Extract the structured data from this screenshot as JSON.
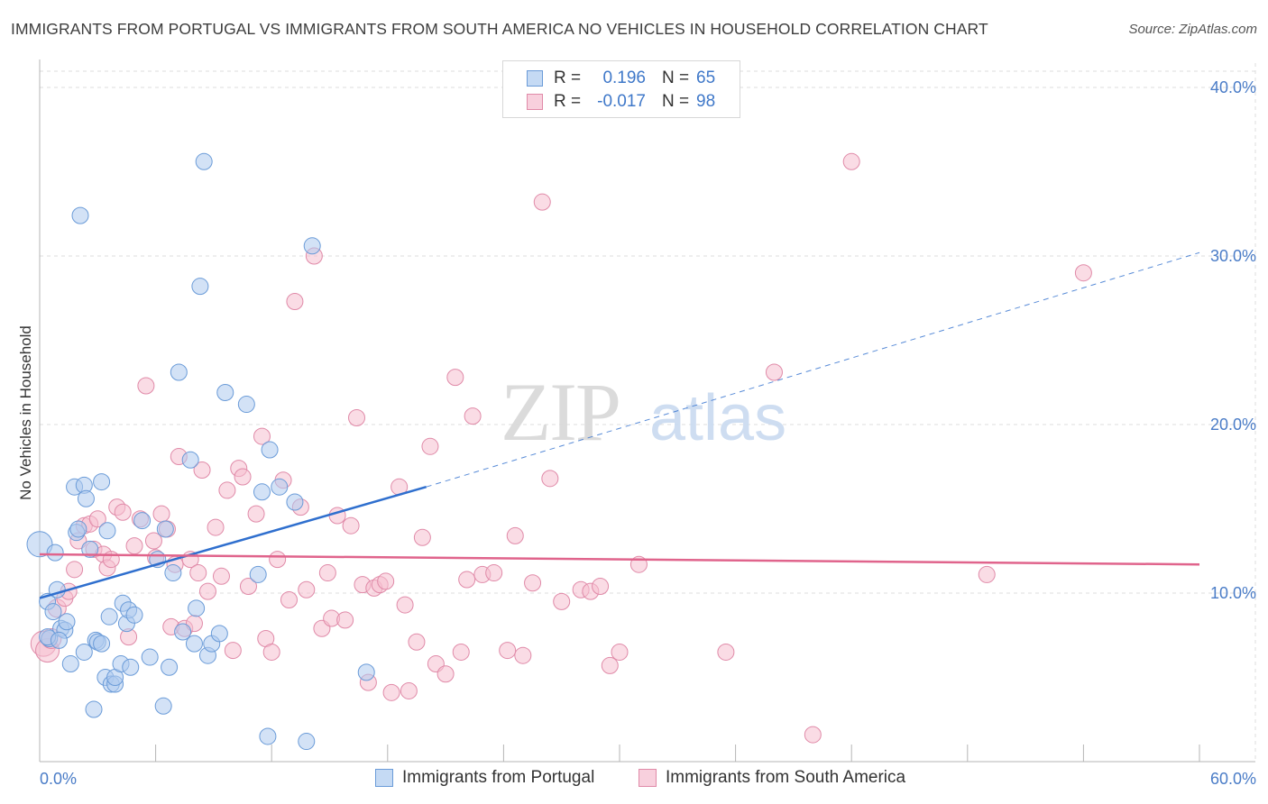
{
  "title": "IMMIGRANTS FROM PORTUGAL VS IMMIGRANTS FROM SOUTH AMERICA NO VEHICLES IN HOUSEHOLD CORRELATION CHART",
  "source": "Source: ZipAtlas.com",
  "watermark": {
    "zip": "ZIP",
    "atlas": "atlas"
  },
  "colors": {
    "blue_fill": "#aecbee",
    "blue_stroke": "#6a9bd8",
    "blue_line": "#2f6fce",
    "pink_fill": "#f5bfd0",
    "pink_stroke": "#e08aa8",
    "pink_line": "#e0648c",
    "tick_text": "#4a7cc7",
    "grid": "#dcdcdc"
  },
  "legend": {
    "rows": [
      {
        "r_label": "R =",
        "r_value": "0.196",
        "n_label": "N =",
        "n_value": "65"
      },
      {
        "r_label": "R =",
        "r_value": "-0.017",
        "n_label": "N =",
        "n_value": "98"
      }
    ]
  },
  "bottom_legend": [
    "Immigrants from Portugal",
    "Immigrants from South America"
  ],
  "chart_data": {
    "type": "scatter",
    "title": "IMMIGRANTS FROM PORTUGAL VS IMMIGRANTS FROM SOUTH AMERICA NO VEHICLES IN HOUSEHOLD CORRELATION CHART",
    "xlabel": "",
    "ylabel": "No Vehicles in Household",
    "xlim": [
      0,
      60
    ],
    "ylim": [
      0,
      40
    ],
    "x_tick_labels": [
      "0.0%",
      "60.0%"
    ],
    "y_ticks": [
      10,
      20,
      30,
      40
    ],
    "y_tick_labels": [
      "10.0%",
      "20.0%",
      "30.0%",
      "40.0%"
    ],
    "grid": true,
    "series": [
      {
        "name": "Immigrants from Portugal",
        "r": 0.196,
        "n": 65,
        "trend": {
          "x0": 0,
          "y0": 9.7,
          "x1": 20,
          "y1": 16.3,
          "dash_to_x": 60,
          "dash_to_y": 30.2
        },
        "points": [
          [
            0.0,
            12.9,
            14
          ],
          [
            0.5,
            7.3,
            9
          ],
          [
            0.4,
            9.5,
            9
          ],
          [
            0.7,
            8.9,
            9
          ],
          [
            0.8,
            12.4,
            9
          ],
          [
            0.9,
            10.2,
            9
          ],
          [
            1.1,
            7.9,
            9
          ],
          [
            1.3,
            7.8,
            9
          ],
          [
            1.4,
            8.3,
            9
          ],
          [
            1.6,
            5.8,
            9
          ],
          [
            1.8,
            16.3,
            9
          ],
          [
            1.9,
            13.6,
            9
          ],
          [
            2.0,
            13.8,
            9
          ],
          [
            2.1,
            32.4,
            9
          ],
          [
            2.3,
            16.4,
            9
          ],
          [
            2.4,
            15.6,
            9
          ],
          [
            2.3,
            6.5,
            9
          ],
          [
            2.6,
            12.6,
            9
          ],
          [
            2.8,
            3.1,
            9
          ],
          [
            2.9,
            7.2,
            9
          ],
          [
            3.0,
            7.1,
            9
          ],
          [
            3.2,
            16.6,
            9
          ],
          [
            3.4,
            5.0,
            9
          ],
          [
            3.5,
            13.7,
            9
          ],
          [
            3.6,
            8.6,
            9
          ],
          [
            3.7,
            4.6,
            9
          ],
          [
            3.9,
            4.6,
            9
          ],
          [
            3.9,
            5.0,
            9
          ],
          [
            4.2,
            5.8,
            9
          ],
          [
            4.3,
            9.4,
            9
          ],
          [
            4.5,
            8.2,
            9
          ],
          [
            4.6,
            9.0,
            9
          ],
          [
            4.7,
            5.6,
            9
          ],
          [
            4.9,
            8.7,
            9
          ],
          [
            5.3,
            14.3,
            9
          ],
          [
            5.7,
            6.2,
            9
          ],
          [
            6.1,
            12.0,
            9
          ],
          [
            6.4,
            3.3,
            9
          ],
          [
            6.5,
            13.8,
            9
          ],
          [
            6.7,
            5.6,
            9
          ],
          [
            6.9,
            11.2,
            9
          ],
          [
            7.2,
            23.1,
            9
          ],
          [
            7.4,
            7.7,
            9
          ],
          [
            7.8,
            17.9,
            9
          ],
          [
            8.0,
            7.0,
            9
          ],
          [
            8.1,
            9.1,
            9
          ],
          [
            8.3,
            28.2,
            9
          ],
          [
            8.5,
            35.6,
            9
          ],
          [
            8.7,
            6.3,
            9
          ],
          [
            8.9,
            7.0,
            9
          ],
          [
            9.3,
            7.6,
            9
          ],
          [
            9.6,
            21.9,
            9
          ],
          [
            10.7,
            21.2,
            9
          ],
          [
            11.3,
            11.1,
            9
          ],
          [
            11.5,
            16.0,
            9
          ],
          [
            11.8,
            1.5,
            9
          ],
          [
            11.9,
            18.5,
            9
          ],
          [
            12.4,
            16.3,
            9
          ],
          [
            13.2,
            15.4,
            9
          ],
          [
            13.8,
            1.2,
            9
          ],
          [
            14.1,
            30.6,
            9
          ],
          [
            16.9,
            5.3,
            9
          ],
          [
            0.4,
            7.4,
            9
          ],
          [
            1.0,
            7.2,
            9
          ],
          [
            3.2,
            7.0,
            9
          ]
        ]
      },
      {
        "name": "Immigrants from South America",
        "r": -0.017,
        "n": 98,
        "trend": {
          "x0": 0,
          "y0": 12.3,
          "x1": 60,
          "y1": 11.7
        },
        "points": [
          [
            0.2,
            7.0,
            14
          ],
          [
            0.4,
            6.6,
            13
          ],
          [
            0.6,
            7.3,
            11
          ],
          [
            0.9,
            9.1,
            10
          ],
          [
            1.3,
            9.7,
            9
          ],
          [
            1.5,
            10.1,
            9
          ],
          [
            1.8,
            11.4,
            9
          ],
          [
            2.0,
            13.1,
            9
          ],
          [
            2.3,
            14.0,
            9
          ],
          [
            2.6,
            14.1,
            9
          ],
          [
            2.8,
            12.6,
            9
          ],
          [
            3.0,
            14.4,
            9
          ],
          [
            3.3,
            12.3,
            9
          ],
          [
            3.5,
            11.5,
            9
          ],
          [
            3.7,
            12.0,
            9
          ],
          [
            4.0,
            15.1,
            9
          ],
          [
            4.3,
            14.8,
            9
          ],
          [
            4.6,
            7.4,
            9
          ],
          [
            4.9,
            12.8,
            9
          ],
          [
            5.2,
            14.4,
            9
          ],
          [
            5.5,
            22.3,
            9
          ],
          [
            5.9,
            13.1,
            9
          ],
          [
            6.0,
            12.1,
            9
          ],
          [
            6.3,
            14.7,
            9
          ],
          [
            6.6,
            13.8,
            9
          ],
          [
            6.8,
            8.0,
            9
          ],
          [
            7.0,
            11.7,
            9
          ],
          [
            7.2,
            18.1,
            9
          ],
          [
            7.5,
            7.9,
            9
          ],
          [
            7.8,
            12.0,
            9
          ],
          [
            8.0,
            8.2,
            9
          ],
          [
            8.2,
            11.2,
            9
          ],
          [
            8.4,
            17.3,
            9
          ],
          [
            8.7,
            10.1,
            9
          ],
          [
            9.1,
            13.9,
            9
          ],
          [
            9.4,
            11.0,
            9
          ],
          [
            9.7,
            16.1,
            9
          ],
          [
            10.0,
            6.6,
            9
          ],
          [
            10.3,
            17.4,
            9
          ],
          [
            10.5,
            16.9,
            9
          ],
          [
            10.8,
            10.4,
            9
          ],
          [
            11.2,
            14.7,
            9
          ],
          [
            11.5,
            19.3,
            9
          ],
          [
            11.7,
            7.3,
            9
          ],
          [
            12.0,
            6.5,
            9
          ],
          [
            12.3,
            12.0,
            9
          ],
          [
            12.6,
            16.7,
            9
          ],
          [
            12.9,
            9.6,
            9
          ],
          [
            13.2,
            27.3,
            9
          ],
          [
            13.5,
            15.1,
            9
          ],
          [
            13.8,
            10.2,
            9
          ],
          [
            14.2,
            30.0,
            9
          ],
          [
            14.6,
            7.9,
            9
          ],
          [
            14.9,
            11.2,
            9
          ],
          [
            15.1,
            8.5,
            9
          ],
          [
            15.4,
            14.6,
            9
          ],
          [
            15.8,
            8.4,
            9
          ],
          [
            16.1,
            14.0,
            9
          ],
          [
            16.4,
            20.4,
            9
          ],
          [
            16.7,
            10.5,
            9
          ],
          [
            17.0,
            4.7,
            9
          ],
          [
            17.3,
            10.3,
            9
          ],
          [
            17.6,
            10.5,
            9
          ],
          [
            17.9,
            10.7,
            9
          ],
          [
            18.2,
            4.1,
            9
          ],
          [
            18.6,
            16.3,
            9
          ],
          [
            18.9,
            9.3,
            9
          ],
          [
            19.1,
            4.2,
            9
          ],
          [
            19.5,
            7.1,
            9
          ],
          [
            19.8,
            13.3,
            9
          ],
          [
            20.2,
            18.7,
            9
          ],
          [
            20.5,
            5.8,
            9
          ],
          [
            21.0,
            5.2,
            9
          ],
          [
            21.5,
            22.8,
            9
          ],
          [
            21.8,
            6.5,
            9
          ],
          [
            22.1,
            10.8,
            9
          ],
          [
            22.4,
            20.5,
            9
          ],
          [
            22.9,
            11.1,
            9
          ],
          [
            23.5,
            11.2,
            9
          ],
          [
            24.2,
            6.6,
            9
          ],
          [
            24.6,
            13.4,
            9
          ],
          [
            25.0,
            6.3,
            9
          ],
          [
            25.5,
            10.6,
            9
          ],
          [
            26.0,
            33.2,
            9
          ],
          [
            26.4,
            16.8,
            9
          ],
          [
            27.0,
            9.5,
            9
          ],
          [
            28.0,
            10.2,
            9
          ],
          [
            28.5,
            10.1,
            9
          ],
          [
            29.0,
            10.4,
            9
          ],
          [
            29.5,
            5.7,
            9
          ],
          [
            30.0,
            6.5,
            9
          ],
          [
            31.0,
            11.7,
            9
          ],
          [
            35.5,
            6.5,
            9
          ],
          [
            38.0,
            23.1,
            9
          ],
          [
            40.0,
            1.6,
            9
          ],
          [
            42.0,
            35.6,
            9
          ],
          [
            49.0,
            11.1,
            9
          ],
          [
            54.0,
            29.0,
            9
          ]
        ]
      }
    ]
  }
}
